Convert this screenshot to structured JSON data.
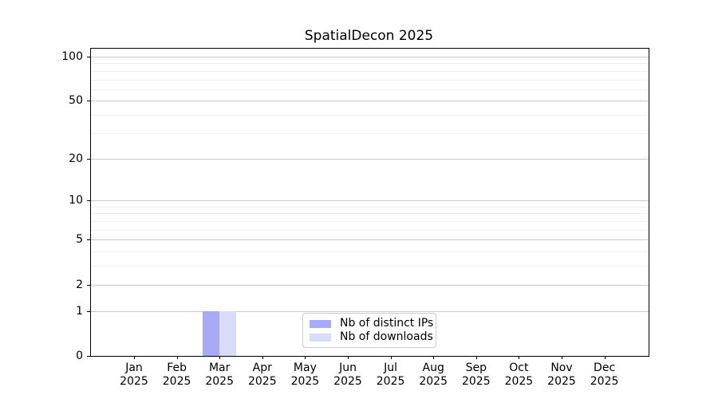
{
  "chart_data": {
    "type": "bar",
    "title": "SpatialDecon 2025",
    "xlabel": "",
    "ylabel": "",
    "categories": [
      "Jan",
      "Feb",
      "Mar",
      "Apr",
      "May",
      "Jun",
      "Jul",
      "Aug",
      "Sep",
      "Oct",
      "Nov",
      "Dec"
    ],
    "x_tick_year": "2025",
    "series": [
      {
        "name": "Nb of distinct IPs",
        "color": "#a9a9f5",
        "values": [
          0,
          0,
          1,
          0,
          0,
          0,
          0,
          0,
          0,
          0,
          0,
          0
        ]
      },
      {
        "name": "Nb of downloads",
        "color": "#dadaf9",
        "values": [
          0,
          0,
          1,
          0,
          0,
          0,
          0,
          0,
          0,
          0,
          0,
          0
        ]
      }
    ],
    "y_scale": "log1p",
    "ylim": [
      0,
      113
    ],
    "y_ticks": [
      0,
      1,
      2,
      5,
      10,
      20,
      50,
      100
    ],
    "y_minor_gridlines": [
      3,
      4,
      6,
      7,
      8,
      9,
      30,
      40,
      60,
      70,
      80,
      90
    ],
    "grid": "on",
    "legend_position": "lower center",
    "colors": {
      "grid_major": "#c9c9c9",
      "grid_minor": "#efefef",
      "spine": "#000000",
      "text": "#000000",
      "legend_border": "#cccccc",
      "background": "#ffffff"
    }
  }
}
